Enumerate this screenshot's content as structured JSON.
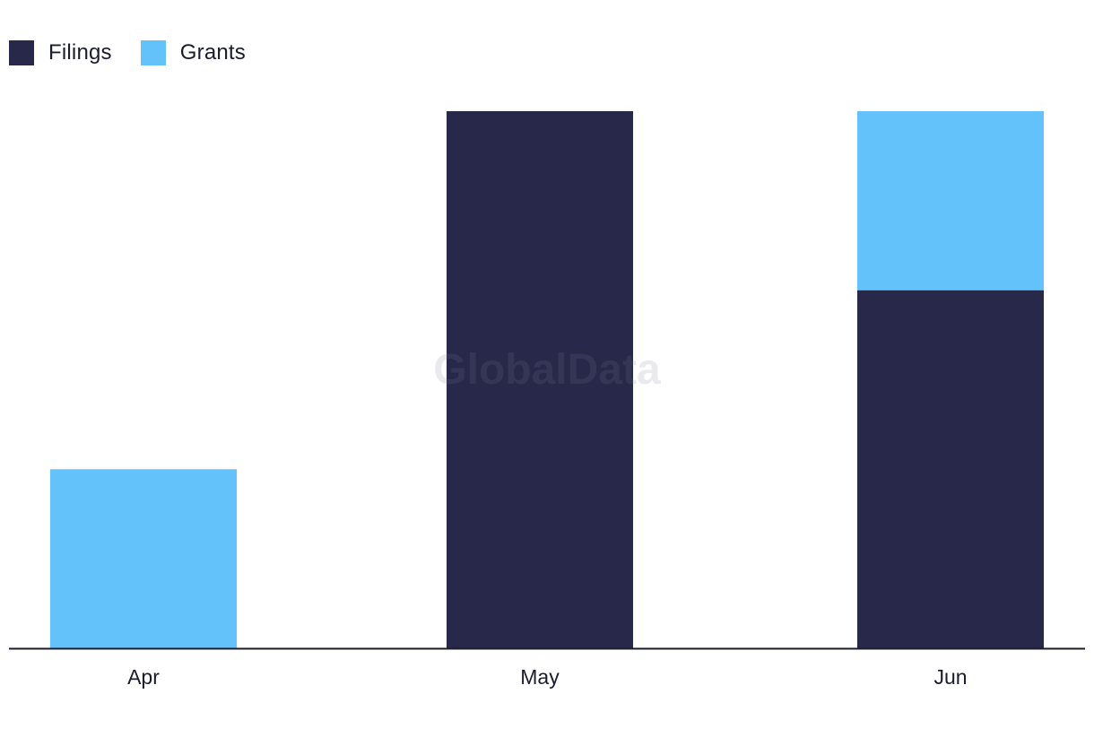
{
  "watermark": "GlobalData",
  "chart_data": {
    "type": "bar",
    "stacked": true,
    "categories": [
      "Apr",
      "May",
      "Jun"
    ],
    "series": [
      {
        "name": "Filings",
        "color": "#28284a",
        "values": [
          0,
          3,
          2
        ]
      },
      {
        "name": "Grants",
        "color": "#63c2fa",
        "values": [
          1,
          0,
          1
        ]
      }
    ],
    "ylim": [
      0,
      3
    ],
    "legend": "top-left",
    "grid": false
  }
}
